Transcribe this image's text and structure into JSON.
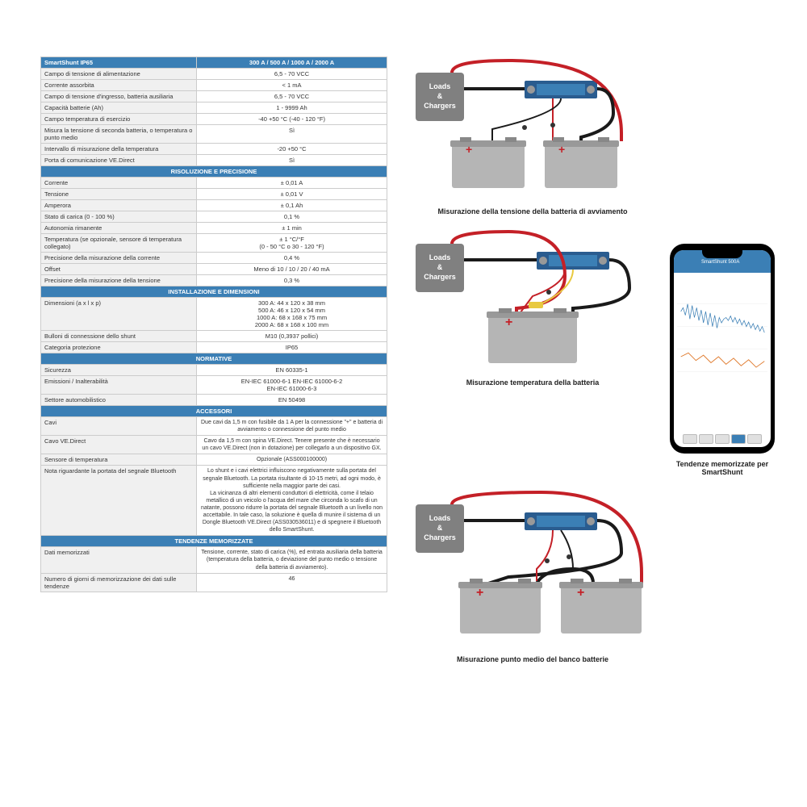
{
  "table": {
    "header": {
      "left": "SmartShunt IP65",
      "right": "300 A / 500 A / 1000 A / 2000 A"
    },
    "main": [
      {
        "l": "Campo di tensione di alimentazione",
        "v": "6,5 - 70 VCC"
      },
      {
        "l": "Corrente assorbita",
        "v": "< 1 mA"
      },
      {
        "l": "Campo di tensione d'ingresso, batteria ausiliaria",
        "v": "6,5 - 70 VCC"
      },
      {
        "l": "Capacità batterie (Ah)",
        "v": "1 - 9999 Ah"
      },
      {
        "l": "Campo temperatura di esercizio",
        "v": "-40   +50 °C   (-40 - 120 °F)"
      },
      {
        "l": "Misura la tensione di seconda batteria, o temperatura o punto medio",
        "v": "Sì"
      },
      {
        "l": "Intervallo di misurazione della temperatura",
        "v": "-20   +50 °C"
      },
      {
        "l": "Porta di comunicazione VE.Direct",
        "v": "Sì"
      }
    ],
    "sect1": "RISOLUZIONE E PRECISIONE",
    "res": [
      {
        "l": "Corrente",
        "v": "± 0,01 A"
      },
      {
        "l": "Tensione",
        "v": "± 0,01 V"
      },
      {
        "l": "Amperora",
        "v": "± 0,1 Ah"
      },
      {
        "l": "Stato di carica (0 - 100 %)",
        "v": "0,1 %"
      },
      {
        "l": "Autonomia rimanente",
        "v": "± 1 min"
      },
      {
        "l": "Temperatura (se opzionale, sensore di temperatura collegato)",
        "v": "± 1 °C/°F\n(0 - 50 °C o 30 - 120 °F)"
      },
      {
        "l": "Precisione della misurazione della corrente",
        "v": "0,4 %"
      },
      {
        "l": "Offset",
        "v": "Meno di 10 / 10 / 20 / 40 mA"
      },
      {
        "l": "Precisione della misurazione della tensione",
        "v": "0,3 %"
      }
    ],
    "sect2": "INSTALLAZIONE E DIMENSIONI",
    "inst": [
      {
        "l": "Dimensioni (a x l x p)",
        "v": "300 A: 44 x 120 x 38 mm\n500 A: 46 x 120 x 54 mm\n1000 A: 68 x 168 x 75 mm\n2000 A: 68 x 168 x 100 mm"
      },
      {
        "l": "Bulloni di connessione dello shunt",
        "v": "M10 (0,3937 pollici)"
      },
      {
        "l": "Categoria protezione",
        "v": "IP65"
      }
    ],
    "sect3": "NORMATIVE",
    "norm": [
      {
        "l": "Sicurezza",
        "v": "EN 60335-1"
      },
      {
        "l": "Emissioni / Inalterabilità",
        "v": "EN-IEC 61000-6-1     EN-IEC 61000-6-2\nEN-IEC 61000-6-3"
      },
      {
        "l": "Settore automobilistico",
        "v": "EN 50498"
      }
    ],
    "sect4": "ACCESSORI",
    "acc": [
      {
        "l": "Cavi",
        "v": "Due cavi da 1,5 m con fusibile da 1 A per la connessione \"+\" e batteria di avviamento o connessione del punto medio"
      },
      {
        "l": "Cavo VE.Direct",
        "v": "Cavo da 1,5 m con spina VE.Direct. Tenere presente che è necessario un cavo VE.Direct (non in dotazione) per collegarlo a un dispositivo GX."
      },
      {
        "l": "Sensore di temperatura",
        "v": "Opzionale (ASS000100000)"
      },
      {
        "l": "Nota riguardante la portata del segnale Bluetooth",
        "v": "Lo shunt e i cavi elettrici influiscono negativamente sulla portata del segnale Bluetooth. La portata risultante di 10-15 metri, ad ogni modo, è sufficiente nella maggior parte dei casi.\nLa vicinanza di altri elementi conduttori di elettricità, come il telaio metallico di un veicolo o l'acqua del mare che circonda lo scafo di un natante, possono ridurre la portata del segnale Bluetooth a un livello non accettabile. In tale caso, la soluzione è quella di munire il sistema di un Dongle Bluetooth VE.Direct (ASS030536011) e di spegnere il Bluetooth dello SmartShunt."
      }
    ],
    "sect5": "TENDENZE MEMORIZZATE",
    "tend": [
      {
        "l": "Dati memorizzati",
        "v": "Tensione, corrente, stato di carica (%), ed entrata ausiliaria della batteria (temperatura della batteria, o deviazione del punto medio o tensione della batteria di avviamento)."
      },
      {
        "l": "Numero di giorni di memorizzazione dei dati sulle tendenze",
        "v": "46"
      }
    ]
  },
  "diagrams": {
    "loads_label": "Loads\n&\nChargers",
    "cap1": "Misurazione della tensione della batteria di avviamento",
    "cap2": "Misurazione temperatura della batteria",
    "cap3": "Misurazione punto medio del banco batterie",
    "phone_cap": "Tendenze memorizzate per SmartShunt",
    "phone_title": "SmartShunt 500A"
  },
  "colors": {
    "blue": "#3b7fb5",
    "red": "#c42027",
    "black": "#1a1a1a",
    "gray": "#808080",
    "lgray": "#b5b5b5",
    "white": "#ffffff",
    "orange": "#e07b2e"
  }
}
